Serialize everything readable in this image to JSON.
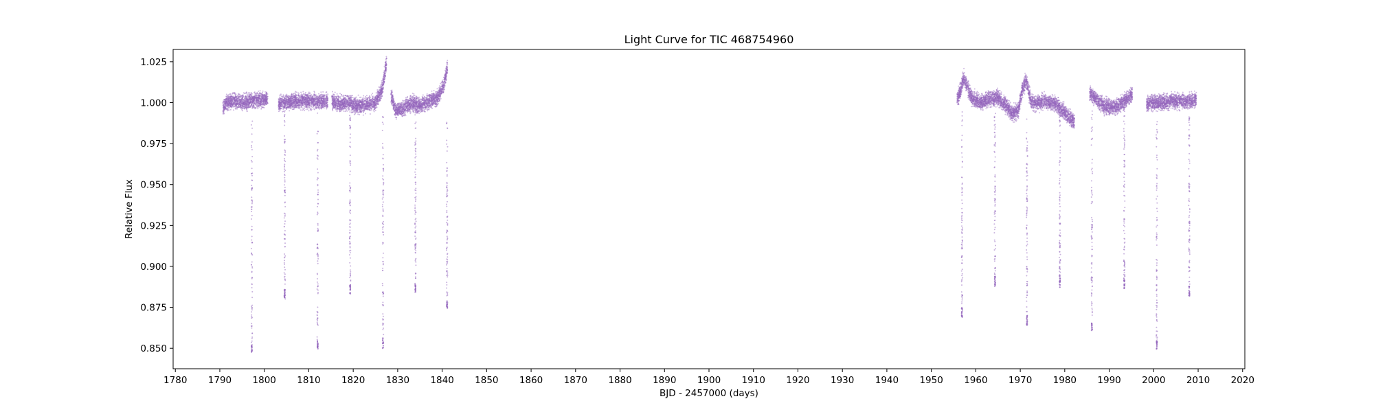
{
  "chart_data": {
    "type": "scatter",
    "title": "Light Curve for TIC 468754960",
    "xlabel": "BJD - 2457000 (days)",
    "ylabel": "Relative Flux",
    "xlim": [
      1779.5,
      2020.5
    ],
    "ylim": [
      0.8375,
      1.0325
    ],
    "xticks": [
      1780,
      1790,
      1800,
      1810,
      1820,
      1830,
      1840,
      1850,
      1860,
      1870,
      1880,
      1890,
      1900,
      1910,
      1920,
      1930,
      1940,
      1950,
      1960,
      1970,
      1980,
      1990,
      2000,
      2010,
      2020
    ],
    "yticks": [
      0.85,
      0.875,
      0.9,
      0.925,
      0.95,
      0.975,
      1.0,
      1.025
    ],
    "ytick_labels": [
      "0.850",
      "0.875",
      "0.900",
      "0.925",
      "0.950",
      "0.975",
      "1.000",
      "1.025"
    ],
    "grid": false,
    "marker_color": "#9467bd",
    "segments": [
      {
        "x": [
          1790.7,
          1791.5,
          1793,
          1795,
          1797,
          1799,
          1800.8
        ],
        "y": [
          0.997,
          1.0,
          1.001,
          1.0,
          1.001,
          1.002,
          1.002
        ]
      },
      {
        "x": [
          1803.2,
          1805,
          1807,
          1809,
          1811,
          1813,
          1814.3
        ],
        "y": [
          0.999,
          1.0,
          1.001,
          1.001,
          1.001,
          1.001,
          1.001
        ]
      },
      {
        "x": [
          1815.2,
          1817,
          1819,
          1821,
          1823,
          1825,
          1826.5,
          1827.5
        ],
        "y": [
          1.001,
          0.999,
          1.0,
          0.998,
          0.999,
          1.0,
          1.008,
          1.025
        ]
      },
      {
        "x": [
          1828.5,
          1829.5,
          1831,
          1833,
          1835,
          1837,
          1839,
          1840.5,
          1841.2
        ],
        "y": [
          1.005,
          0.995,
          0.996,
          1.0,
          0.998,
          1.001,
          1.003,
          1.012,
          1.022
        ]
      },
      {
        "x": [
          1955.8,
          1956.5,
          1957.3,
          1959,
          1961,
          1963,
          1965,
          1967,
          1968.3,
          1969.5,
          1970.5,
          1971.3,
          1972.5,
          1974,
          1976,
          1978,
          1980,
          1982.2
        ],
        "y": [
          1.002,
          1.007,
          1.015,
          1.003,
          1.0,
          1.002,
          1.003,
          0.998,
          0.993,
          0.995,
          1.008,
          1.014,
          1.0,
          1.0,
          1.001,
          0.999,
          0.994,
          0.988
        ]
      },
      {
        "x": [
          1985.6,
          1987,
          1989,
          1991,
          1993,
          1995.2
        ],
        "y": [
          1.006,
          1.002,
          0.998,
          0.997,
          1.0,
          1.005
        ]
      },
      {
        "x": [
          1998.4,
          2000,
          2002,
          2004,
          2006,
          2008,
          2009.6
        ],
        "y": [
          0.999,
          1.0,
          1.0,
          1.001,
          1.001,
          1.001,
          1.002
        ]
      }
    ],
    "transits": [
      {
        "x": 1797.2,
        "min": 0.847
      },
      {
        "x": 1804.6,
        "min": 0.88
      },
      {
        "x": 1812.0,
        "min": 0.849
      },
      {
        "x": 1819.3,
        "min": 0.883
      },
      {
        "x": 1826.7,
        "min": 0.85
      },
      {
        "x": 1834.0,
        "min": 0.884
      },
      {
        "x": 1841.1,
        "min": 0.874
      },
      {
        "x": 1956.9,
        "min": 0.869
      },
      {
        "x": 1964.3,
        "min": 0.888
      },
      {
        "x": 1971.5,
        "min": 0.864
      },
      {
        "x": 1978.9,
        "min": 0.887
      },
      {
        "x": 1986.1,
        "min": 0.86
      },
      {
        "x": 1993.4,
        "min": 0.886
      },
      {
        "x": 2000.7,
        "min": 0.849
      },
      {
        "x": 2008.0,
        "min": 0.882
      }
    ]
  }
}
